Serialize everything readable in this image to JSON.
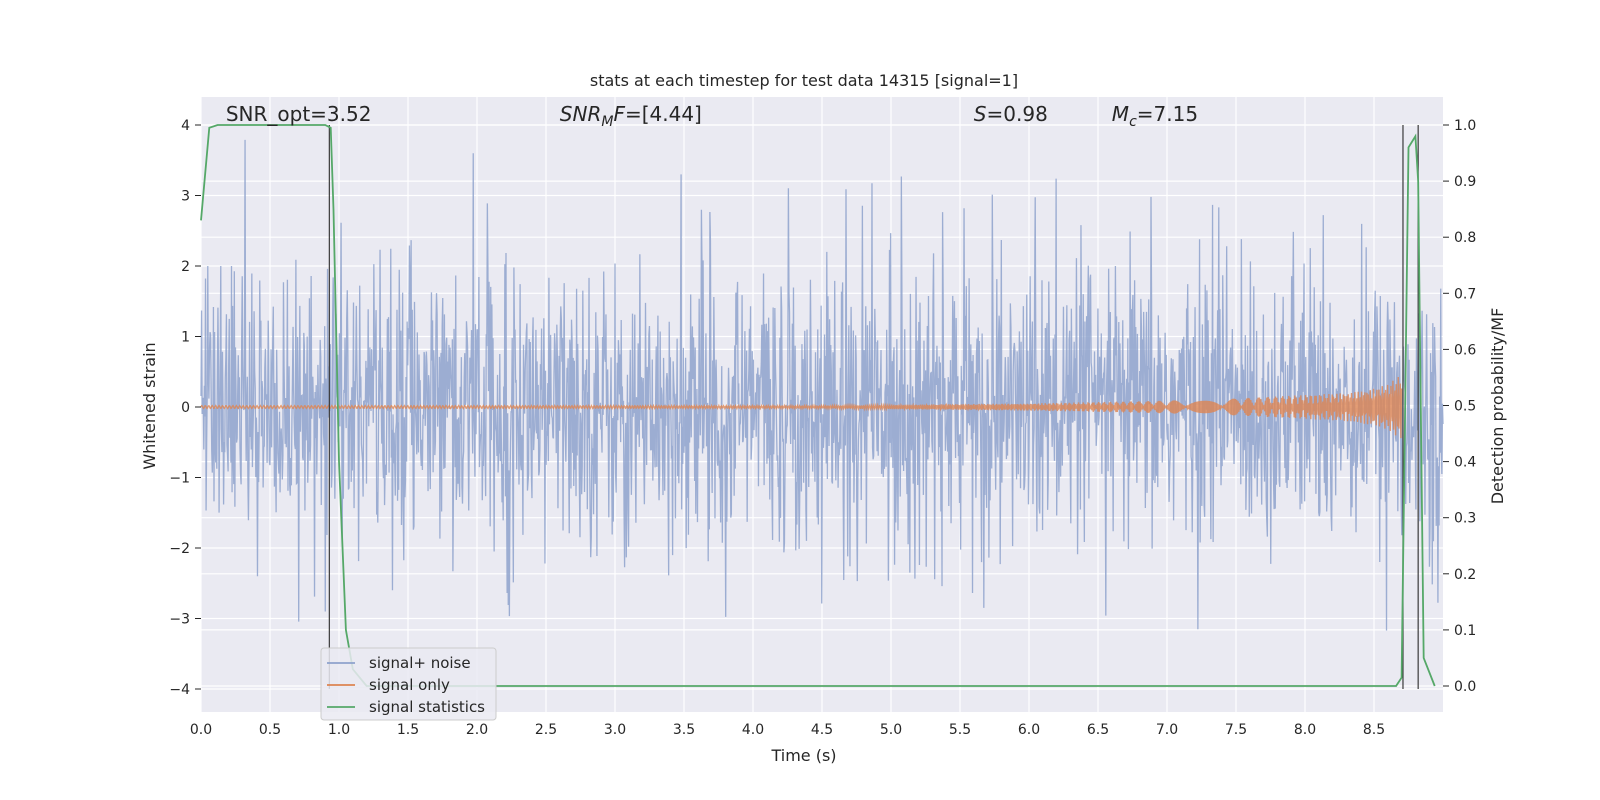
{
  "chart_data": {
    "type": "line",
    "title": "stats at each timestep for test data 14315 [signal=1]",
    "xlabel": "Time (s)",
    "ylabel_left": "Whitened strain",
    "ylabel_right": "Detection probability/MF",
    "xlim": [
      0.0,
      9.0
    ],
    "ylim_left": [
      -4.35,
      4.4
    ],
    "ylim_right": [
      -0.05,
      1.045
    ],
    "x_ticks": [
      "0.0",
      "0.5",
      "1.0",
      "1.5",
      "2.0",
      "2.5",
      "3.0",
      "3.5",
      "4.0",
      "4.5",
      "5.0",
      "5.5",
      "6.0",
      "6.5",
      "7.0",
      "7.5",
      "8.0",
      "8.5"
    ],
    "y_ticks_left": [
      "−4",
      "−3",
      "−2",
      "−1",
      "0",
      "1",
      "2",
      "3",
      "4"
    ],
    "y_ticks_right": [
      "0.0",
      "0.1",
      "0.2",
      "0.3",
      "0.4",
      "0.5",
      "0.6",
      "0.7",
      "0.8",
      "0.9",
      "1.0"
    ],
    "annotations": [
      {
        "text": "SNR_opt=3.52",
        "x": 0.18,
        "y": 4.1
      },
      {
        "text": "SNR_MF=[4.44]",
        "x": 2.6,
        "y": 4.1
      },
      {
        "text": "S=0.98",
        "x": 5.6,
        "y": 4.1
      },
      {
        "text": "M_c=7.15",
        "x": 6.6,
        "y": 4.1
      }
    ],
    "grid": true,
    "legend_position": "lower-left",
    "series": [
      {
        "name": "signal+ noise",
        "axis": "left",
        "color": "#8ea2cc",
        "description_values": {
          "envelope_max": [
            2.0,
            4.0,
            2.6,
            4.0,
            2.7,
            3.2,
            3.3,
            3.6,
            2.9,
            3.6,
            2.9,
            3.0,
            4.0,
            3.3,
            2.8,
            3.0,
            2.8,
            3.4,
            3.5,
            3.3,
            3.6,
            3.3,
            3.2,
            3.0,
            3.3,
            3.2,
            3.6,
            3.4,
            3.2,
            3.1,
            2.9,
            3.3,
            3.2,
            3.4,
            3.4,
            2.9
          ],
          "envelope_min": [
            -2.9,
            -3.2,
            -3.5,
            -2.9,
            -3.0,
            -2.6,
            -3.3,
            -2.7,
            -3.1,
            -2.6,
            -3.7,
            -3.2,
            -2.6,
            -2.9,
            -3.3,
            -3.4,
            -3.0,
            -3.0,
            -2.8,
            -2.7,
            -2.6,
            -3.4,
            -3.0,
            -2.5,
            -3.8,
            -3.9,
            -3.3,
            -2.9,
            -3.2,
            -3.9,
            -3.1,
            -3.1,
            -3.2,
            -3.0,
            -3.3,
            -2.9
          ]
        }
      },
      {
        "name": "signal only",
        "axis": "left",
        "color": "#dd8452",
        "x": [
          0.0,
          4.5,
          5.0,
          5.5,
          6.0,
          6.5,
          7.0,
          7.5,
          8.0,
          8.3,
          8.5,
          8.6,
          8.65,
          8.7
        ],
        "amplitude": [
          0.02,
          0.02,
          0.03,
          0.04,
          0.05,
          0.07,
          0.09,
          0.12,
          0.17,
          0.2,
          0.26,
          0.32,
          0.4,
          0.45
        ]
      },
      {
        "name": "signal statistics",
        "axis": "right",
        "color": "#55a868",
        "x": [
          0.0,
          0.06,
          0.12,
          0.9,
          0.94,
          0.96,
          1.0,
          1.05,
          1.1,
          1.2,
          1.3,
          8.4,
          8.5,
          8.6,
          8.66,
          8.7,
          8.75,
          8.8,
          8.82,
          8.86,
          8.94
        ],
        "values": [
          0.83,
          0.995,
          1.0,
          1.0,
          0.995,
          0.85,
          0.4,
          0.1,
          0.03,
          0.0,
          0.0,
          0.0,
          0.0,
          0.0,
          0.0,
          0.015,
          0.96,
          0.98,
          0.9,
          0.05,
          0.0
        ]
      }
    ],
    "vertical_lines_x": [
      0.93,
      8.71,
      8.82
    ]
  }
}
